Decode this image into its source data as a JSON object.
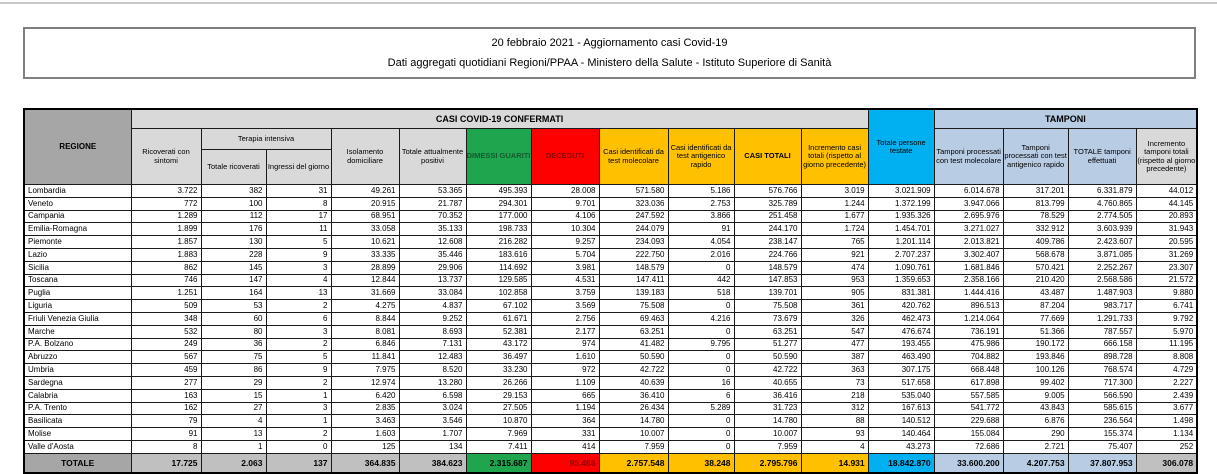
{
  "title": {
    "line1": "20 febbraio 2021 - Aggiornamento casi Covid-19",
    "line2": "Dati aggregati quotidiani Regioni/PPAA - Ministero della Salute - Istituto Superiore di Sanità"
  },
  "colors": {
    "green": "#1fa54e",
    "red": "#fe0000",
    "amber": "#ffc000",
    "cyan": "#00b0f0",
    "peri": "#b8cce4",
    "hdr": "#d9d9d9",
    "gray": "#a6a6a6",
    "gray2": "#c0c0c0"
  },
  "table": {
    "groups": {
      "casi": "CASI COVID-19 CONFERMATI",
      "terapia": "Terapia intensiva",
      "tamponi": "TAMPONI"
    },
    "headers": {
      "regione": "REGIONE",
      "ricoverati_sintomi": "Ricoverati con sintomi",
      "totale_ricoverati": "Totale ricoverati",
      "ingressi_giorno": "Ingressi del giorno",
      "isolamento": "Isolamento domiciliare",
      "attualmente_positivi": "Totale attualmente positivi",
      "dimessi": "DIMESSI GUARITI",
      "deceduti": "DECEDUTI",
      "casi_molecolare": "Casi identificati da test molecolare",
      "casi_antigenico": "Casi identificati da test antigenico rapido",
      "casi_totali": "CASI TOTALI",
      "incremento_casi": "Incremento casi totali (rispetto al giorno precedente)",
      "persone_testate": "Totale persone testate",
      "tamponi_molecolare": "Tamponi processati con test molecolare",
      "tamponi_antigenico": "Tamponi processati con test antigenico rapido",
      "totale_tamponi": "TOTALE tamponi effettuati",
      "incremento_tamponi": "Incremento tamponi totali (rispetto al giorno precedente)"
    },
    "rows": [
      {
        "regione": "Lombardia",
        "values": [
          "3.722",
          "382",
          "31",
          "49.261",
          "53.365",
          "495.393",
          "28.008",
          "571.580",
          "5.186",
          "576.766",
          "3.019",
          "3.021.909",
          "6.014.678",
          "317.201",
          "6.331.879",
          "44.012"
        ]
      },
      {
        "regione": "Veneto",
        "values": [
          "772",
          "100",
          "8",
          "20.915",
          "21.787",
          "294.301",
          "9.701",
          "323.036",
          "2.753",
          "325.789",
          "1.244",
          "1.372.199",
          "3.947.066",
          "813.799",
          "4.760.865",
          "44.145"
        ]
      },
      {
        "regione": "Campania",
        "values": [
          "1.289",
          "112",
          "17",
          "68.951",
          "70.352",
          "177.000",
          "4.106",
          "247.592",
          "3.866",
          "251.458",
          "1.677",
          "1.935.326",
          "2.695.976",
          "78.529",
          "2.774.505",
          "20.893"
        ]
      },
      {
        "regione": "Emilia-Romagna",
        "values": [
          "1.899",
          "176",
          "11",
          "33.058",
          "35.133",
          "198.733",
          "10.304",
          "244.079",
          "91",
          "244.170",
          "1.724",
          "1.454.701",
          "3.271.027",
          "332.912",
          "3.603.939",
          "31.943"
        ]
      },
      {
        "regione": "Piemonte",
        "values": [
          "1.857",
          "130",
          "5",
          "10.621",
          "12.608",
          "216.282",
          "9.257",
          "234.093",
          "4.054",
          "238.147",
          "765",
          "1.201.114",
          "2.013.821",
          "409.786",
          "2.423.607",
          "20.595"
        ]
      },
      {
        "regione": "Lazio",
        "values": [
          "1.883",
          "228",
          "9",
          "33.335",
          "35.446",
          "183.616",
          "5.704",
          "222.750",
          "2.016",
          "224.766",
          "921",
          "2.707.237",
          "3.302.407",
          "568.678",
          "3.871.085",
          "31.269"
        ]
      },
      {
        "regione": "Sicilia",
        "values": [
          "862",
          "145",
          "3",
          "28.899",
          "29.906",
          "114.692",
          "3.981",
          "148.579",
          "0",
          "148.579",
          "474",
          "1.090.761",
          "1.681.846",
          "570.421",
          "2.252.267",
          "23.307"
        ]
      },
      {
        "regione": "Toscana",
        "values": [
          "746",
          "147",
          "4",
          "12.844",
          "13.737",
          "129.585",
          "4.531",
          "147.411",
          "442",
          "147.853",
          "953",
          "1.359.653",
          "2.358.166",
          "210.420",
          "2.568.586",
          "21.572"
        ]
      },
      {
        "regione": "Puglia",
        "values": [
          "1.251",
          "164",
          "13",
          "31.669",
          "33.084",
          "102.858",
          "3.759",
          "139.183",
          "518",
          "139.701",
          "905",
          "831.381",
          "1.444.416",
          "43.487",
          "1.487.903",
          "9.880"
        ]
      },
      {
        "regione": "Liguria",
        "values": [
          "509",
          "53",
          "2",
          "4.275",
          "4.837",
          "67.102",
          "3.569",
          "75.508",
          "0",
          "75.508",
          "361",
          "420.762",
          "896.513",
          "87.204",
          "983.717",
          "6.741"
        ]
      },
      {
        "regione": "Friuli Venezia Giulia",
        "values": [
          "348",
          "60",
          "6",
          "8.844",
          "9.252",
          "61.671",
          "2.756",
          "69.463",
          "4.216",
          "73.679",
          "326",
          "462.473",
          "1.214.064",
          "77.669",
          "1.291.733",
          "9.792"
        ]
      },
      {
        "regione": "Marche",
        "values": [
          "532",
          "80",
          "3",
          "8.081",
          "8.693",
          "52.381",
          "2.177",
          "63.251",
          "0",
          "63.251",
          "547",
          "476.674",
          "736.191",
          "51.366",
          "787.557",
          "5.970"
        ]
      },
      {
        "regione": "P.A. Bolzano",
        "values": [
          "249",
          "36",
          "2",
          "6.846",
          "7.131",
          "43.172",
          "974",
          "41.482",
          "9.795",
          "51.277",
          "477",
          "193.455",
          "475.986",
          "190.172",
          "666.158",
          "11.195"
        ]
      },
      {
        "regione": "Abruzzo",
        "values": [
          "567",
          "75",
          "5",
          "11.841",
          "12.483",
          "36.497",
          "1.610",
          "50.590",
          "0",
          "50.590",
          "387",
          "463.490",
          "704.882",
          "193.846",
          "898.728",
          "8.808"
        ]
      },
      {
        "regione": "Umbria",
        "values": [
          "459",
          "86",
          "9",
          "7.975",
          "8.520",
          "33.230",
          "972",
          "42.722",
          "0",
          "42.722",
          "363",
          "307.175",
          "668.448",
          "100.126",
          "768.574",
          "4.729"
        ]
      },
      {
        "regione": "Sardegna",
        "values": [
          "277",
          "29",
          "2",
          "12.974",
          "13.280",
          "26.266",
          "1.109",
          "40.639",
          "16",
          "40.655",
          "73",
          "517.658",
          "617.898",
          "99.402",
          "717.300",
          "2.227"
        ]
      },
      {
        "regione": "Calabria",
        "values": [
          "163",
          "15",
          "1",
          "6.420",
          "6.598",
          "29.153",
          "665",
          "36.410",
          "6",
          "36.416",
          "218",
          "535.040",
          "557.585",
          "9.005",
          "566.590",
          "2.439"
        ]
      },
      {
        "regione": "P.A. Trento",
        "values": [
          "162",
          "27",
          "3",
          "2.835",
          "3.024",
          "27.505",
          "1.194",
          "26.434",
          "5.289",
          "31.723",
          "312",
          "167.613",
          "541.772",
          "43.843",
          "585.615",
          "3.677"
        ]
      },
      {
        "regione": "Basilicata",
        "values": [
          "79",
          "4",
          "1",
          "3.463",
          "3.546",
          "10.870",
          "364",
          "14.780",
          "0",
          "14.780",
          "88",
          "140.512",
          "229.688",
          "6.876",
          "236.564",
          "1.498"
        ]
      },
      {
        "regione": "Molise",
        "values": [
          "91",
          "13",
          "2",
          "1.603",
          "1.707",
          "7.969",
          "331",
          "10.007",
          "0",
          "10.007",
          "93",
          "140.464",
          "155.084",
          "290",
          "155.374",
          "1.134"
        ]
      },
      {
        "regione": "Valle d'Aosta",
        "values": [
          "8",
          "1",
          "0",
          "125",
          "134",
          "7.411",
          "414",
          "7.959",
          "0",
          "7.959",
          "4",
          "43.273",
          "72.686",
          "2.721",
          "75.407",
          "252"
        ]
      }
    ],
    "totale": {
      "label": "TOTALE",
      "values": [
        "17.725",
        "2.063",
        "137",
        "364.835",
        "384.623",
        "2.315.687",
        "95.486",
        "2.757.548",
        "38.248",
        "2.795.796",
        "14.931",
        "18.842.870",
        "33.600.200",
        "4.207.753",
        "37.807.953",
        "306.078"
      ]
    }
  }
}
